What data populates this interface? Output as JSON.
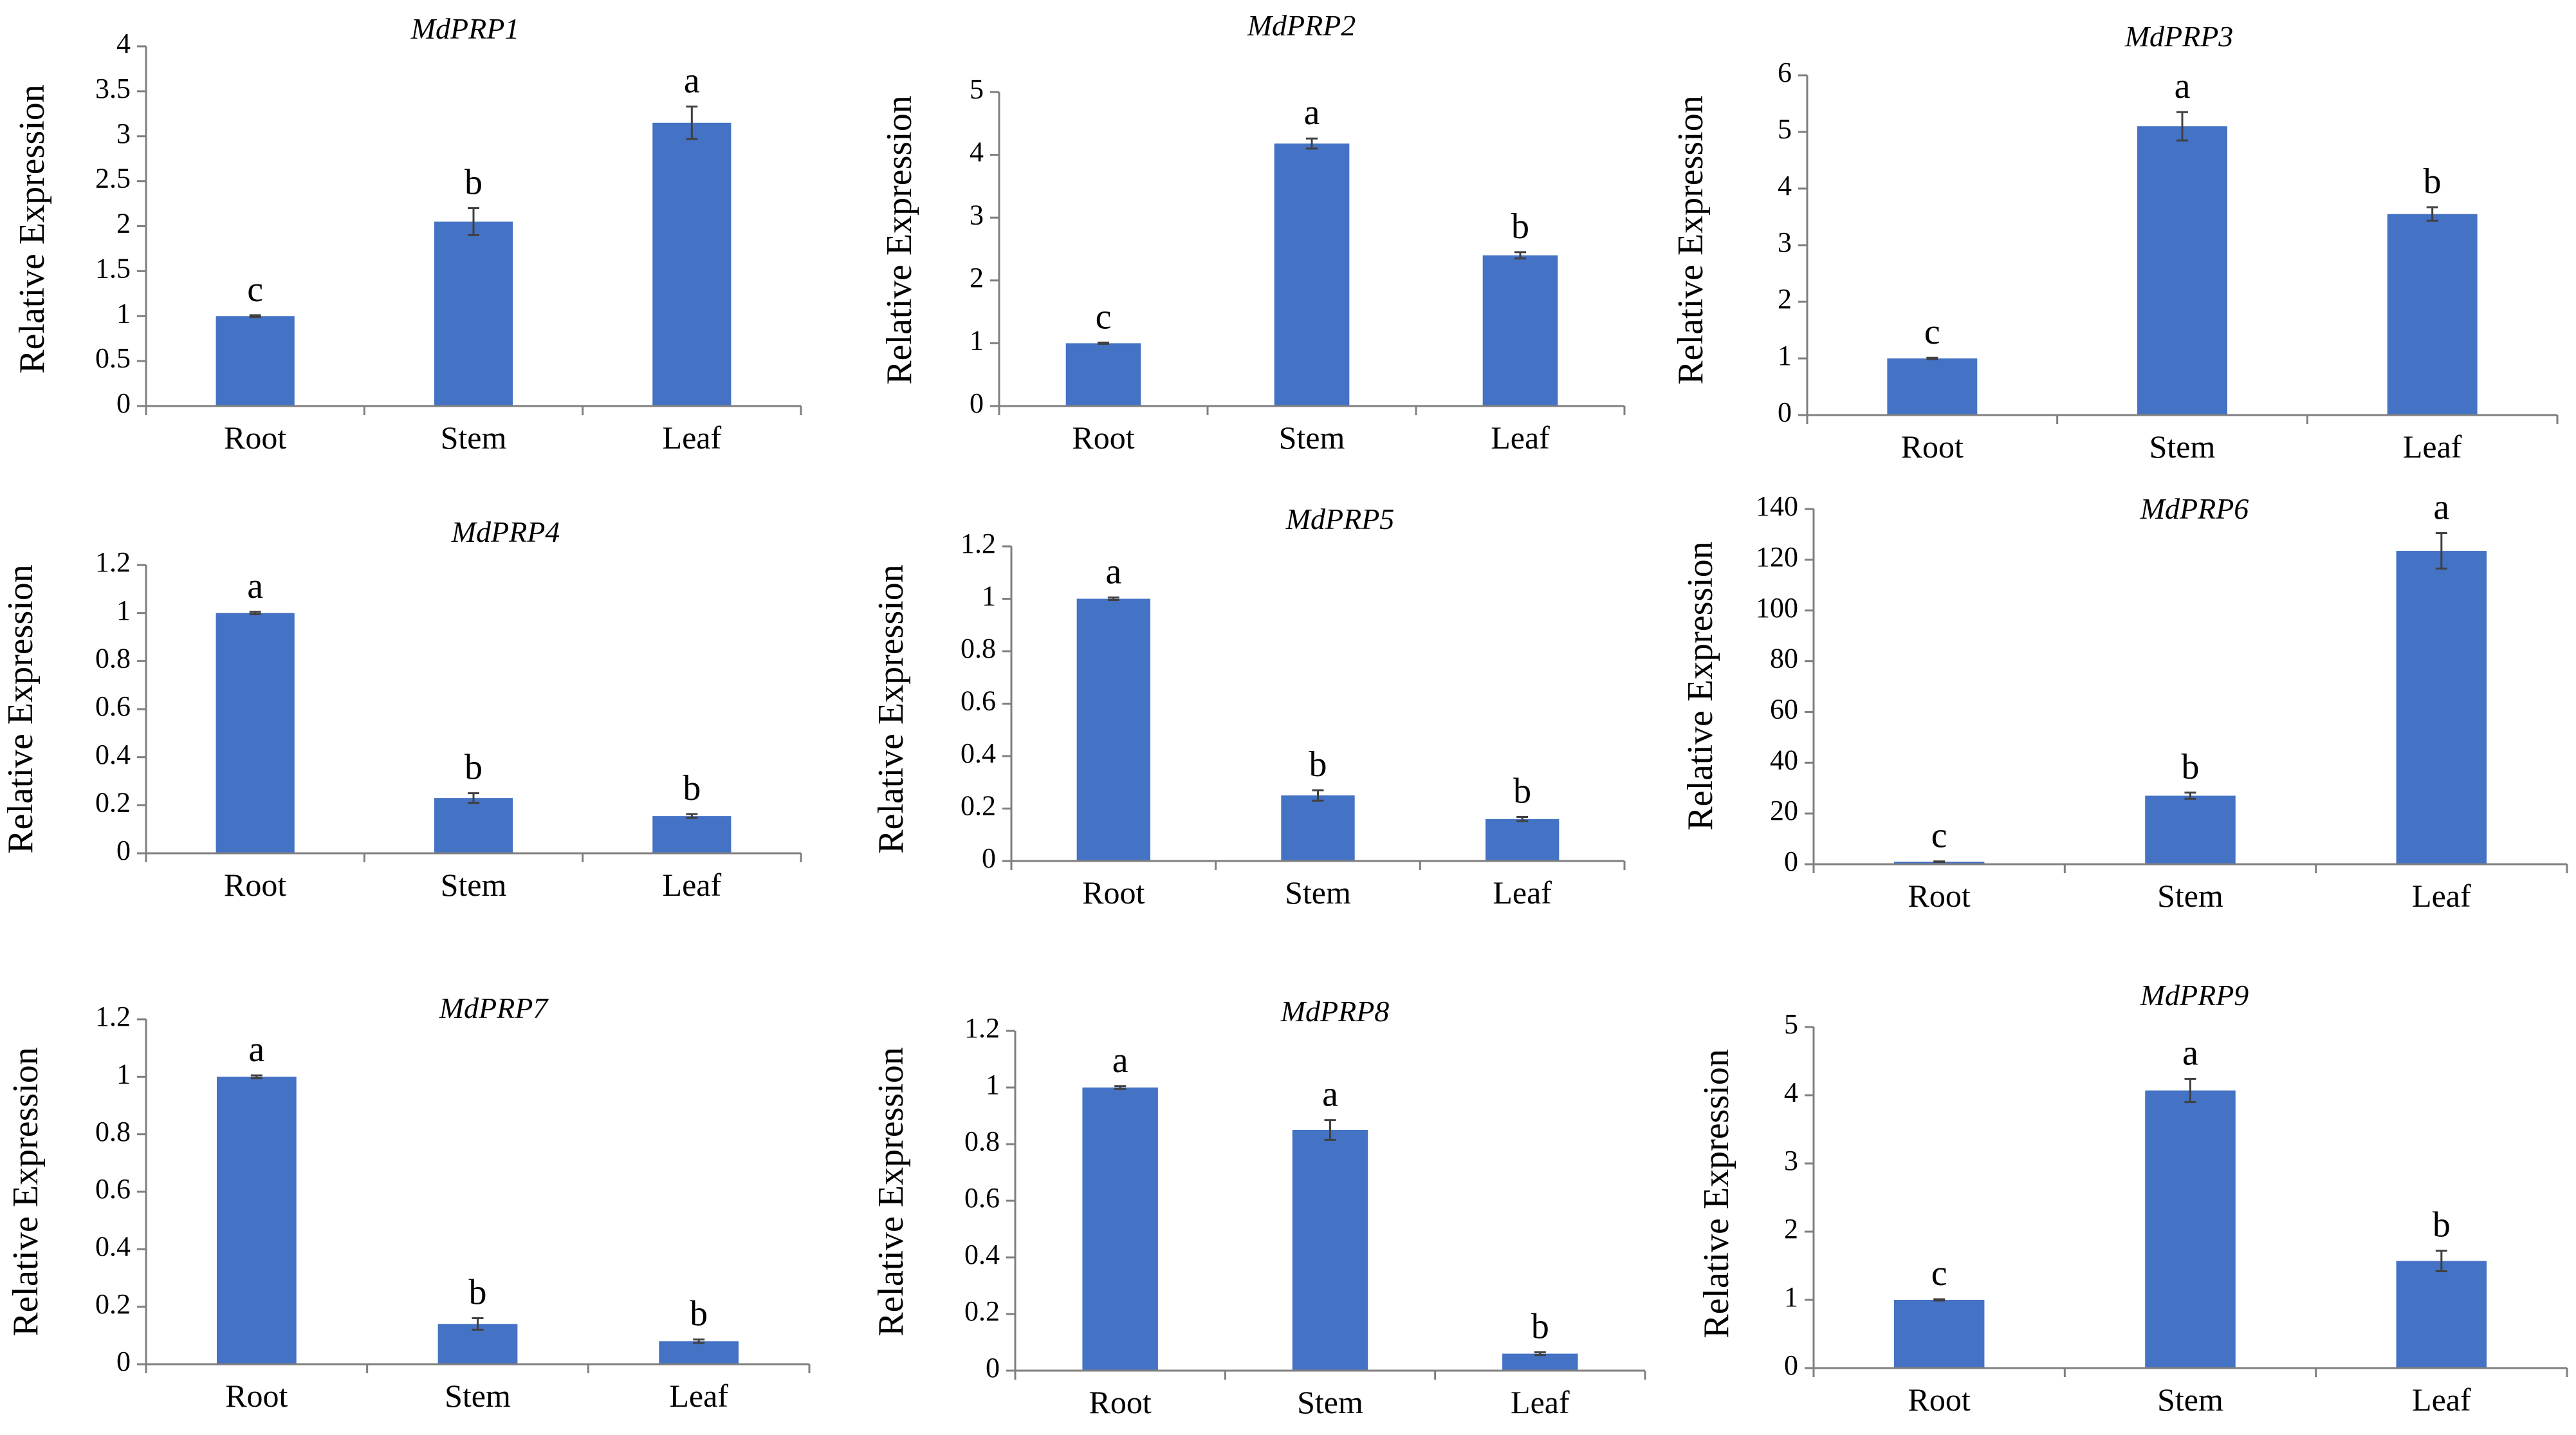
{
  "figure": {
    "ylabel": "Relative Expression",
    "categories": [
      "Root",
      "Stem",
      "Leaf"
    ],
    "bar_color": "#4472c4",
    "axis_color": "#7f7f7f",
    "error_color": "#404040"
  },
  "chart_data": [
    {
      "type": "bar",
      "title": "MdPRP1",
      "xlabel": "",
      "ylabel": "Relative Expression",
      "categories": [
        "Root",
        "Stem",
        "Leaf"
      ],
      "values": [
        1.0,
        2.05,
        3.15
      ],
      "errors": [
        0.01,
        0.15,
        0.18
      ],
      "letters": [
        "c",
        "b",
        "a"
      ],
      "ylim": [
        0,
        4
      ],
      "yticks": [
        0,
        0.5,
        1,
        1.5,
        2,
        2.5,
        3,
        3.5,
        4
      ],
      "ytick_labels": [
        "0",
        "0.5",
        "1",
        "1.5",
        "2",
        "2.5",
        "3",
        "3.5",
        "4"
      ]
    },
    {
      "type": "bar",
      "title": "MdPRP2",
      "xlabel": "",
      "ylabel": "Relative Expression",
      "categories": [
        "Root",
        "Stem",
        "Leaf"
      ],
      "values": [
        1.0,
        4.18,
        2.4
      ],
      "errors": [
        0.01,
        0.08,
        0.05
      ],
      "letters": [
        "c",
        "a",
        "b"
      ],
      "ylim": [
        0,
        5
      ],
      "yticks": [
        0,
        1,
        2,
        3,
        4,
        5
      ],
      "ytick_labels": [
        "0",
        "1",
        "2",
        "3",
        "4",
        "5"
      ]
    },
    {
      "type": "bar",
      "title": "MdPRP3",
      "xlabel": "",
      "ylabel": "Relative Expression",
      "categories": [
        "Root",
        "Stem",
        "Leaf"
      ],
      "values": [
        1.0,
        5.1,
        3.55
      ],
      "errors": [
        0.01,
        0.25,
        0.12
      ],
      "letters": [
        "c",
        "a",
        "b"
      ],
      "ylim": [
        0,
        6
      ],
      "yticks": [
        0,
        1,
        2,
        3,
        4,
        5,
        6
      ],
      "ytick_labels": [
        "0",
        "1",
        "2",
        "3",
        "4",
        "5",
        "6"
      ]
    },
    {
      "type": "bar",
      "title": "MdPRP4",
      "xlabel": "",
      "ylabel": "Relative Expression",
      "categories": [
        "Root",
        "Stem",
        "Leaf"
      ],
      "values": [
        1.0,
        0.23,
        0.155
      ],
      "errors": [
        0.005,
        0.02,
        0.008
      ],
      "letters": [
        "a",
        "b",
        "b"
      ],
      "ylim": [
        0,
        1.2
      ],
      "yticks": [
        0,
        0.2,
        0.4,
        0.6,
        0.8,
        1,
        1.2
      ],
      "ytick_labels": [
        "0",
        "0.2",
        "0.4",
        "0.6",
        "0.8",
        "1",
        "1.2"
      ]
    },
    {
      "type": "bar",
      "title": "MdPRP5",
      "xlabel": "",
      "ylabel": "Relative Expression",
      "categories": [
        "Root",
        "Stem",
        "Leaf"
      ],
      "values": [
        1.0,
        0.25,
        0.16
      ],
      "errors": [
        0.005,
        0.02,
        0.008
      ],
      "letters": [
        "a",
        "b",
        "b"
      ],
      "ylim": [
        0,
        1.2
      ],
      "yticks": [
        0,
        0.2,
        0.4,
        0.6,
        0.8,
        1,
        1.2
      ],
      "ytick_labels": [
        "0",
        "0.2",
        "0.4",
        "0.6",
        "0.8",
        "1",
        "1.2"
      ]
    },
    {
      "type": "bar",
      "title": "MdPRP6",
      "xlabel": "",
      "ylabel": "Relative Expression",
      "categories": [
        "Root",
        "Stem",
        "Leaf"
      ],
      "values": [
        1.0,
        27.0,
        123.5
      ],
      "errors": [
        0.1,
        1.2,
        7.0
      ],
      "letters": [
        "c",
        "b",
        "a"
      ],
      "ylim": [
        0,
        140
      ],
      "yticks": [
        0,
        20,
        40,
        60,
        80,
        100,
        120,
        140
      ],
      "ytick_labels": [
        "0",
        "20",
        "40",
        "60",
        "80",
        "100",
        "120",
        "140"
      ]
    },
    {
      "type": "bar",
      "title": "MdPRP7",
      "xlabel": "",
      "ylabel": "Relative Expression",
      "categories": [
        "Root",
        "Stem",
        "Leaf"
      ],
      "values": [
        1.0,
        0.14,
        0.08
      ],
      "errors": [
        0.005,
        0.02,
        0.006
      ],
      "letters": [
        "a",
        "b",
        "b"
      ],
      "ylim": [
        0,
        1.2
      ],
      "yticks": [
        0,
        0.2,
        0.4,
        0.6,
        0.8,
        1,
        1.2
      ],
      "ytick_labels": [
        "0",
        "0.2",
        "0.4",
        "0.6",
        "0.8",
        "1",
        "1.2"
      ]
    },
    {
      "type": "bar",
      "title": "MdPRP8",
      "xlabel": "",
      "ylabel": "Relative Expression",
      "categories": [
        "Root",
        "Stem",
        "Leaf"
      ],
      "values": [
        1.0,
        0.85,
        0.06
      ],
      "errors": [
        0.005,
        0.035,
        0.005
      ],
      "letters": [
        "a",
        "a",
        "b"
      ],
      "ylim": [
        0,
        1.2
      ],
      "yticks": [
        0,
        0.2,
        0.4,
        0.6,
        0.8,
        1,
        1.2
      ],
      "ytick_labels": [
        "0",
        "0.2",
        "0.4",
        "0.6",
        "0.8",
        "1",
        "1.2"
      ]
    },
    {
      "type": "bar",
      "title": "MdPRP9",
      "xlabel": "",
      "ylabel": "Relative Expression",
      "categories": [
        "Root",
        "Stem",
        "Leaf"
      ],
      "values": [
        1.0,
        4.07,
        1.57
      ],
      "errors": [
        0.01,
        0.17,
        0.15
      ],
      "letters": [
        "c",
        "a",
        "b"
      ],
      "ylim": [
        0,
        5
      ],
      "yticks": [
        0,
        1,
        2,
        3,
        4,
        5
      ],
      "ytick_labels": [
        "0",
        "1",
        "2",
        "3",
        "4",
        "5"
      ]
    }
  ]
}
